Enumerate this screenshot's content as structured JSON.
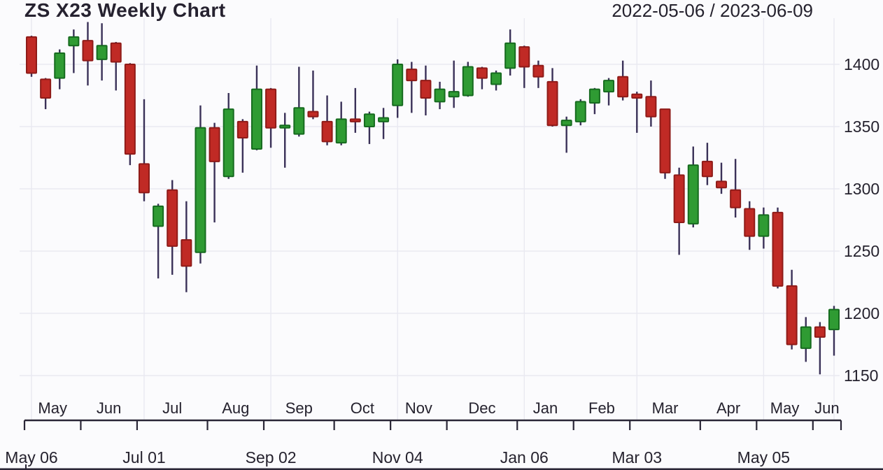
{
  "header": {
    "title": "ZS X23 Weekly Chart",
    "date_range": "2022-05-06 / 2023-06-09"
  },
  "chart_data": {
    "type": "candlestick",
    "title": "ZS X23 Weekly Chart",
    "symbol": "ZS X23",
    "interval": "weekly",
    "start_date": "2022-05-06",
    "end_date": "2023-06-09",
    "grid": true,
    "y_axis": {
      "side": "right",
      "ticks": [
        1400,
        1350,
        1300,
        1250,
        1200,
        1150
      ],
      "min": 1140,
      "max": 1436
    },
    "x_axis": {
      "months": [
        {
          "label": "May",
          "weeks": 4
        },
        {
          "label": "Jun",
          "weeks": 4
        },
        {
          "label": "Jul",
          "weeks": 5
        },
        {
          "label": "Aug",
          "weeks": 4
        },
        {
          "label": "Sep",
          "weeks": 5
        },
        {
          "label": "Oct",
          "weeks": 4
        },
        {
          "label": "Nov",
          "weeks": 4
        },
        {
          "label": "Dec",
          "weeks": 5
        },
        {
          "label": "Jan",
          "weeks": 4
        },
        {
          "label": "Feb",
          "weeks": 4
        },
        {
          "label": "Mar",
          "weeks": 5
        },
        {
          "label": "Apr",
          "weeks": 4
        },
        {
          "label": "May",
          "weeks": 4
        },
        {
          "label": "Jun",
          "weeks": 2
        }
      ],
      "date_labels": [
        {
          "label": "May 06",
          "week_index": 0
        },
        {
          "label": "Jul 01",
          "week_index": 8
        },
        {
          "label": "Sep 02",
          "week_index": 17
        },
        {
          "label": "Nov 04",
          "week_index": 26
        },
        {
          "label": "Jan 06",
          "week_index": 35
        },
        {
          "label": "Mar 03",
          "week_index": 43
        },
        {
          "label": "May 05",
          "week_index": 52
        }
      ]
    },
    "colors": {
      "up_fill": "#2f9b33",
      "up_border": "#166b1f",
      "down_fill": "#c02a25",
      "down_border": "#8f1b18",
      "wick": "#3a3158",
      "text": "#25222e",
      "axis": "#2a2636",
      "grid": "#e9e9f1"
    },
    "candles": [
      [
        "2022-05-06",
        1422,
        1423,
        1390,
        1393
      ],
      [
        "2022-05-13",
        1388,
        1389,
        1364,
        1373
      ],
      [
        "2022-05-20",
        1389,
        1412,
        1380,
        1409
      ],
      [
        "2022-05-27",
        1415,
        1428,
        1393,
        1422
      ],
      [
        "2022-06-03",
        1419,
        1434,
        1383,
        1403
      ],
      [
        "2022-06-10",
        1404,
        1433,
        1387,
        1415
      ],
      [
        "2022-06-17",
        1417,
        1418,
        1379,
        1402
      ],
      [
        "2022-06-24",
        1400,
        1401,
        1319,
        1328
      ],
      [
        "2022-07-01",
        1320,
        1372,
        1290,
        1297
      ],
      [
        "2022-07-08",
        1270,
        1288,
        1228,
        1286
      ],
      [
        "2022-07-15",
        1299,
        1307,
        1231,
        1254
      ],
      [
        "2022-07-22",
        1259,
        1290,
        1217,
        1238
      ],
      [
        "2022-07-29",
        1249,
        1367,
        1240,
        1349
      ],
      [
        "2022-08-05",
        1349,
        1353,
        1273,
        1322
      ],
      [
        "2022-08-12",
        1310,
        1377,
        1308,
        1364
      ],
      [
        "2022-08-19",
        1354,
        1356,
        1313,
        1341
      ],
      [
        "2022-08-26",
        1332,
        1399,
        1331,
        1380
      ],
      [
        "2022-09-02",
        1380,
        1381,
        1333,
        1349
      ],
      [
        "2022-09-09",
        1349,
        1361,
        1317,
        1351
      ],
      [
        "2022-09-16",
        1344,
        1398,
        1342,
        1365
      ],
      [
        "2022-09-23",
        1362,
        1395,
        1356,
        1358
      ],
      [
        "2022-09-30",
        1354,
        1375,
        1335,
        1338
      ],
      [
        "2022-10-07",
        1337,
        1370,
        1335,
        1356
      ],
      [
        "2022-10-14",
        1356,
        1381,
        1345,
        1354
      ],
      [
        "2022-10-21",
        1350,
        1362,
        1336,
        1360
      ],
      [
        "2022-10-28",
        1354,
        1365,
        1340,
        1357
      ],
      [
        "2022-11-04",
        1367,
        1404,
        1357,
        1400
      ],
      [
        "2022-11-11",
        1396,
        1402,
        1361,
        1387
      ],
      [
        "2022-11-18",
        1387,
        1399,
        1359,
        1373
      ],
      [
        "2022-11-25",
        1370,
        1386,
        1364,
        1380
      ],
      [
        "2022-12-02",
        1374,
        1403,
        1365,
        1378
      ],
      [
        "2022-12-09",
        1375,
        1402,
        1374,
        1398
      ],
      [
        "2022-12-16",
        1397,
        1398,
        1380,
        1389
      ],
      [
        "2022-12-23",
        1384,
        1395,
        1379,
        1393
      ],
      [
        "2022-12-30",
        1397,
        1428,
        1391,
        1417
      ],
      [
        "2023-01-06",
        1414,
        1415,
        1381,
        1398
      ],
      [
        "2023-01-13",
        1399,
        1403,
        1381,
        1390
      ],
      [
        "2023-01-20",
        1386,
        1397,
        1350,
        1351
      ],
      [
        "2023-01-27",
        1351,
        1358,
        1329,
        1355
      ],
      [
        "2023-02-03",
        1354,
        1372,
        1351,
        1370
      ],
      [
        "2023-02-10",
        1369,
        1381,
        1360,
        1380
      ],
      [
        "2023-02-17",
        1378,
        1389,
        1367,
        1387
      ],
      [
        "2023-02-24",
        1390,
        1403,
        1371,
        1374
      ],
      [
        "2023-03-03",
        1376,
        1378,
        1345,
        1373
      ],
      [
        "2023-03-10",
        1374,
        1387,
        1350,
        1358
      ],
      [
        "2023-03-17",
        1364,
        1364,
        1308,
        1313
      ],
      [
        "2023-03-24",
        1311,
        1317,
        1247,
        1273
      ],
      [
        "2023-03-31",
        1272,
        1334,
        1269,
        1319
      ],
      [
        "2023-04-07",
        1322,
        1337,
        1303,
        1310
      ],
      [
        "2023-04-14",
        1306,
        1321,
        1296,
        1301
      ],
      [
        "2023-04-21",
        1299,
        1324,
        1277,
        1285
      ],
      [
        "2023-04-28",
        1284,
        1290,
        1251,
        1262
      ],
      [
        "2023-05-05",
        1262,
        1285,
        1252,
        1279
      ],
      [
        "2023-05-12",
        1281,
        1285,
        1220,
        1222
      ],
      [
        "2023-05-19",
        1222,
        1235,
        1171,
        1175
      ],
      [
        "2023-05-26",
        1172,
        1197,
        1161,
        1189
      ],
      [
        "2023-06-02",
        1189,
        1193,
        1151,
        1181
      ],
      [
        "2023-06-09",
        1187,
        1206,
        1166,
        1203
      ]
    ]
  }
}
